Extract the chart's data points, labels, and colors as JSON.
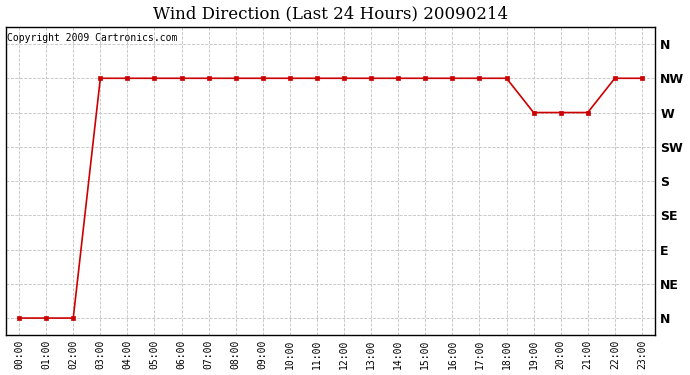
{
  "title": "Wind Direction (Last 24 Hours) 20090214",
  "copyright_text": "Copyright 2009 Cartronics.com",
  "x_labels": [
    "00:00",
    "01:00",
    "02:00",
    "03:00",
    "04:00",
    "05:00",
    "06:00",
    "07:00",
    "08:00",
    "09:00",
    "10:00",
    "11:00",
    "12:00",
    "13:00",
    "14:00",
    "15:00",
    "16:00",
    "17:00",
    "18:00",
    "19:00",
    "20:00",
    "21:00",
    "22:00",
    "23:00"
  ],
  "y_labels": [
    "N",
    "NE",
    "E",
    "SE",
    "S",
    "SW",
    "W",
    "NW",
    "N"
  ],
  "y_values": [
    0,
    1,
    2,
    3,
    4,
    5,
    6,
    7,
    8
  ],
  "wind_data": [
    0,
    0,
    0,
    7,
    7,
    7,
    7,
    7,
    7,
    7,
    7,
    7,
    7,
    7,
    7,
    7,
    7,
    7,
    7,
    6,
    6,
    6,
    7,
    7
  ],
  "line_color": "#cc0000",
  "marker_color": "#cc0000",
  "marker_style": "s",
  "marker_size": 3,
  "bg_color": "#ffffff",
  "plot_bg_color": "#ffffff",
  "grid_color": "#bbbbbb",
  "title_fontsize": 12,
  "copyright_fontsize": 7,
  "y_label_fontsize": 9,
  "x_label_fontsize": 7
}
